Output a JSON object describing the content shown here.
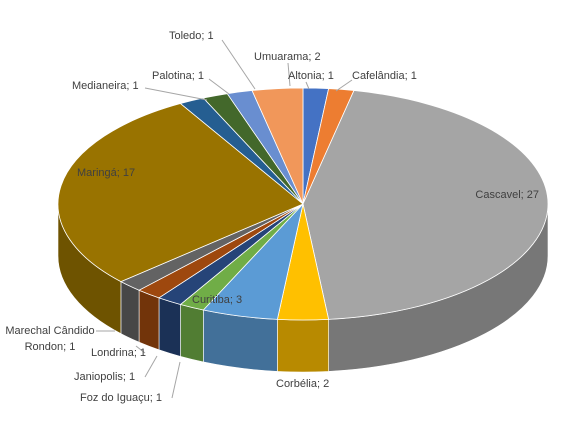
{
  "chart_data": {
    "type": "pie3d",
    "labels": [
      "Altonia; 1",
      "Cafelândia; 1",
      "Cascavel; 27",
      "Corbélia; 2",
      "Curitiba; 3",
      "Foz do Iguaçu; 1",
      "Janiopolis; 1",
      "Londrina; 1",
      "Marechal Cândido Rondon; 1",
      "Maringá; 17",
      "Medianeira; 1",
      "Palotina; 1",
      "Toledo; 1",
      "Umuarama; 2"
    ],
    "values": [
      1,
      1,
      27,
      2,
      3,
      1,
      1,
      1,
      1,
      17,
      1,
      1,
      1,
      2
    ],
    "colors": [
      "#4472c4",
      "#ed7d31",
      "#a5a5a5",
      "#ffc000",
      "#5b9bd5",
      "#70ad47",
      "#264478",
      "#9e480e",
      "#636363",
      "#997300",
      "#255e91",
      "#43682b",
      "#698ed0",
      "#f1975a"
    ]
  }
}
